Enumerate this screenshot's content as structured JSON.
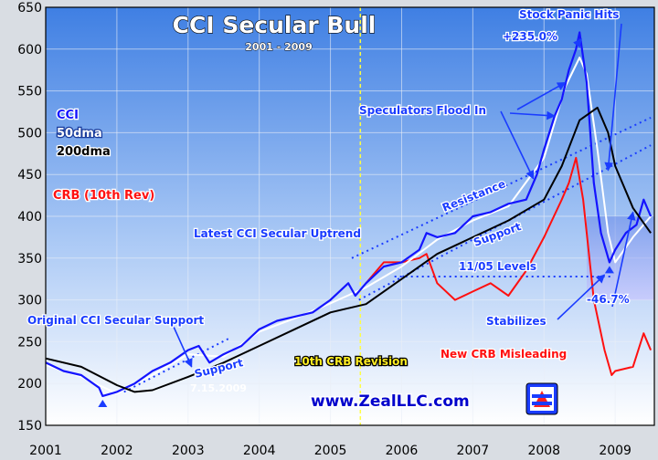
{
  "chart_data": {
    "type": "line",
    "title": "CCI Secular Bull",
    "subtitle": "2001 - 2009",
    "xlabel": "",
    "ylabel": "",
    "xlim": [
      2001,
      2009.55
    ],
    "ylim": [
      150,
      650
    ],
    "x_ticks": [
      "2001",
      "2002",
      "2003",
      "2004",
      "2005",
      "2006",
      "2007",
      "2008",
      "2009"
    ],
    "y_ticks": [
      "150",
      "200",
      "250",
      "300",
      "350",
      "400",
      "450",
      "500",
      "550",
      "600",
      "650"
    ],
    "grid": true,
    "legend_placement": "left",
    "colors": {
      "cci": "#1414ff",
      "dma50": "#ffffff",
      "dma200": "#000000",
      "crb": "#ff1010",
      "annotation": "#1a3cff",
      "revision_line": "#ffff44",
      "background_top": "#4a8ae8",
      "background_bottom": "#ffffff"
    },
    "series": [
      {
        "name": "CCI",
        "x": [
          2001.0,
          2001.25,
          2001.5,
          2001.75,
          2001.8,
          2002.0,
          2002.25,
          2002.5,
          2002.75,
          2003.0,
          2003.15,
          2003.3,
          2003.5,
          2003.75,
          2004.0,
          2004.25,
          2004.5,
          2004.75,
          2005.0,
          2005.25,
          2005.35,
          2005.5,
          2005.75,
          2006.0,
          2006.25,
          2006.35,
          2006.5,
          2006.75,
          2007.0,
          2007.25,
          2007.5,
          2007.75,
          2007.9,
          2008.0,
          2008.15,
          2008.25,
          2008.35,
          2008.45,
          2008.5,
          2008.6,
          2008.7,
          2008.8,
          2008.92,
          2009.0,
          2009.15,
          2009.3,
          2009.4,
          2009.5
        ],
        "y": [
          225,
          215,
          210,
          195,
          185,
          190,
          200,
          215,
          225,
          240,
          245,
          225,
          235,
          245,
          265,
          275,
          280,
          285,
          300,
          320,
          305,
          320,
          340,
          345,
          360,
          380,
          375,
          380,
          400,
          405,
          415,
          420,
          450,
          480,
          520,
          540,
          575,
          600,
          620,
          560,
          440,
          380,
          345,
          360,
          380,
          390,
          420,
          400
        ]
      },
      {
        "name": "50dma",
        "x": [
          2001.0,
          2001.5,
          2002.0,
          2002.5,
          2003.0,
          2003.5,
          2004.0,
          2004.5,
          2005.0,
          2005.5,
          2006.0,
          2006.5,
          2007.0,
          2007.5,
          2008.0,
          2008.3,
          2008.5,
          2008.6,
          2008.75,
          2008.9,
          2009.0,
          2009.25,
          2009.5
        ],
        "y": [
          222,
          208,
          188,
          210,
          235,
          232,
          262,
          278,
          296,
          315,
          340,
          372,
          395,
          412,
          470,
          555,
          590,
          570,
          480,
          380,
          345,
          375,
          400
        ]
      },
      {
        "name": "200dma",
        "x": [
          2001.0,
          2001.5,
          2002.0,
          2002.25,
          2002.5,
          2003.0,
          2003.5,
          2004.0,
          2004.5,
          2005.0,
          2005.5,
          2006.0,
          2006.5,
          2007.0,
          2007.5,
          2008.0,
          2008.25,
          2008.5,
          2008.75,
          2008.9,
          2009.0,
          2009.25,
          2009.5
        ],
        "y": [
          230,
          220,
          198,
          190,
          192,
          208,
          225,
          245,
          265,
          285,
          295,
          325,
          355,
          375,
          395,
          420,
          460,
          515,
          530,
          500,
          460,
          410,
          380
        ]
      },
      {
        "name": "CRB (10th Rev)",
        "x": [
          2005.5,
          2005.75,
          2006.0,
          2006.25,
          2006.35,
          2006.5,
          2006.75,
          2007.0,
          2007.25,
          2007.5,
          2007.75,
          2008.0,
          2008.25,
          2008.35,
          2008.45,
          2008.55,
          2008.7,
          2008.85,
          2008.95,
          2009.0,
          2009.25,
          2009.4,
          2009.5
        ],
        "y": [
          320,
          345,
          345,
          350,
          355,
          320,
          300,
          310,
          320,
          305,
          335,
          375,
          420,
          440,
          470,
          420,
          300,
          240,
          210,
          215,
          220,
          260,
          240
        ]
      }
    ],
    "legend": [
      {
        "name": "CCI",
        "color": "#1414ff"
      },
      {
        "name": "50dma",
        "color": "#ffffff"
      },
      {
        "name": "200dma",
        "color": "#000000"
      },
      {
        "name": "CRB (10th Rev)",
        "color": "#ff1010"
      }
    ],
    "annotations": {
      "stock_panic": "Stock Panic Hits",
      "gain": "+235.0%",
      "speculators": "Speculators Flood In",
      "resistance": "Resistance",
      "support_upper": "Support",
      "latest_uptrend": "Latest CCI Secular Uptrend",
      "levels_1105": "11/05 Levels",
      "decline": "-46.7%",
      "stabilizes": "Stabilizes",
      "original_support": "Original CCI Secular Support",
      "support_lower": "Support",
      "crb_revision": "10th CRB Revision",
      "crb_misleading": "New CRB Misleading",
      "website": "www.ZealLLC.com",
      "date": "7.15.2009"
    }
  }
}
